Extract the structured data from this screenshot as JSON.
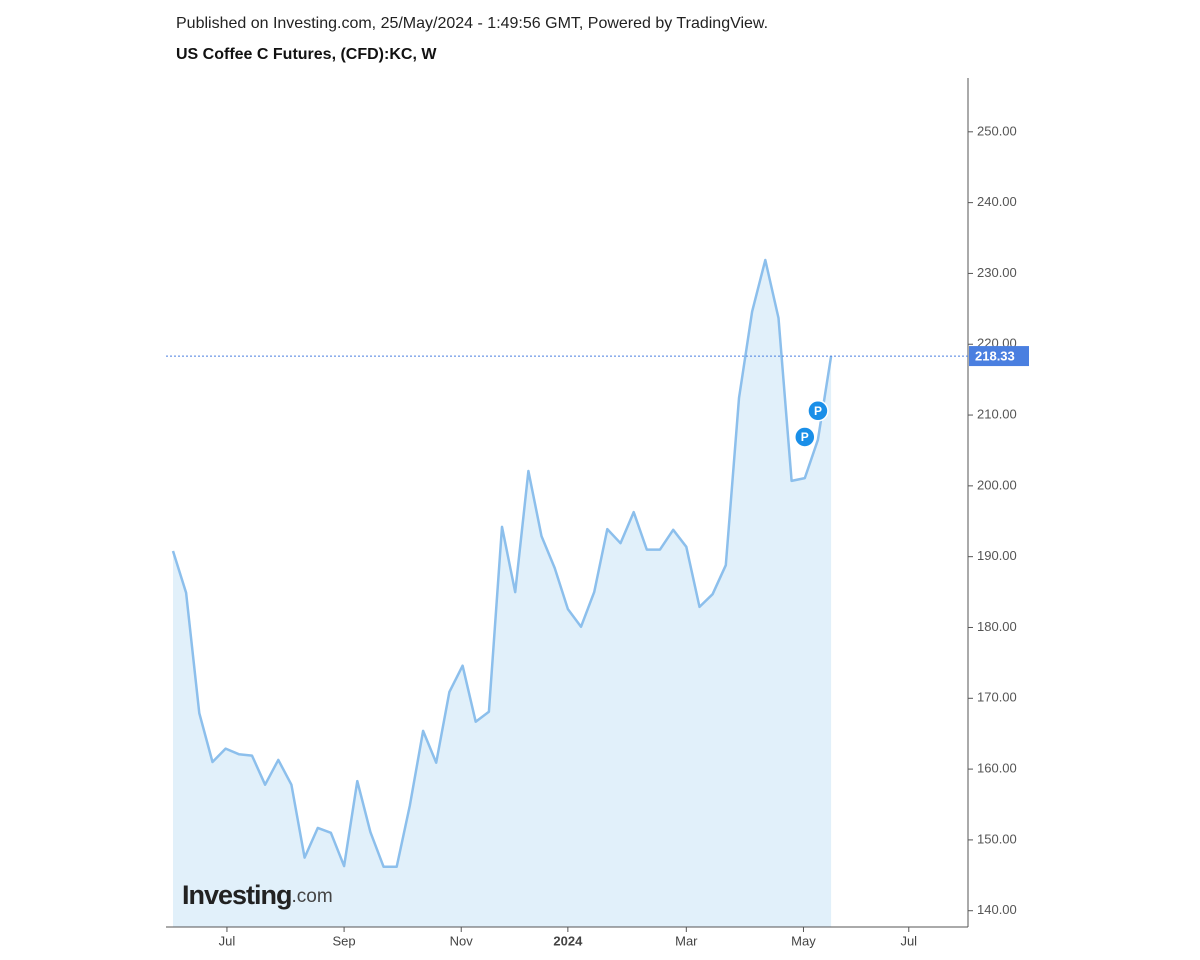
{
  "chart_data": {
    "type": "area",
    "header": "Published on Investing.com, 25/May/2024 - 1:49:56 GMT, Powered by TradingView.",
    "title": "US Coffee C Futures, (CFD):KC, W",
    "watermark": {
      "brand": "Investing",
      "suffix": ".com"
    },
    "categories": [
      null,
      null,
      null,
      null,
      null,
      null,
      null,
      null,
      null,
      null,
      null,
      null,
      null,
      null,
      null,
      null,
      null,
      null,
      null,
      null,
      null,
      null,
      null,
      null,
      null,
      null,
      null,
      null,
      null,
      null,
      null,
      null,
      null,
      null,
      null,
      null,
      null,
      null,
      null,
      null,
      null,
      null,
      null,
      null,
      null,
      null,
      null,
      null,
      null,
      null,
      null
    ],
    "values": [
      190.8,
      184.9,
      167.9,
      161.0,
      162.9,
      162.1,
      161.9,
      157.8,
      161.3,
      157.8,
      147.5,
      151.7,
      151.0,
      146.3,
      158.3,
      151.1,
      146.2,
      146.2,
      154.9,
      165.4,
      160.9,
      170.9,
      174.6,
      166.7,
      168.1,
      194.2,
      185.0,
      202.1,
      192.9,
      188.4,
      182.6,
      180.1,
      185.0,
      193.9,
      191.9,
      196.3,
      191.0,
      191.0,
      193.8,
      191.4,
      182.9,
      184.7,
      188.8,
      212.4,
      224.6,
      231.9,
      223.7,
      200.7,
      201.1,
      206.5,
      218.33
    ],
    "color": "#8cbfec",
    "fill": "#e1f0fa",
    "last_color": "#4a7fe0",
    "xlim": [
      -0.53,
      60.4
    ],
    "xticks": [
      {
        "value": 4.1,
        "label": "Jul"
      },
      {
        "value": 13.0,
        "label": "Sep"
      },
      {
        "value": 21.9,
        "label": "Nov"
      },
      {
        "value": 30.0,
        "label": "2024"
      },
      {
        "value": 39.0,
        "label": "Mar"
      },
      {
        "value": 47.9,
        "label": "May"
      },
      {
        "value": 55.9,
        "label": "Jul"
      }
    ],
    "ylim": [
      137.7,
      257.6
    ],
    "yticks": [
      {
        "value": 140,
        "label": "140.00"
      },
      {
        "value": 150,
        "label": "150.00"
      },
      {
        "value": 160,
        "label": "160.00"
      },
      {
        "value": 170,
        "label": "170.00"
      },
      {
        "value": 180,
        "label": "180.00"
      },
      {
        "value": 190,
        "label": "190.00"
      },
      {
        "value": 200,
        "label": "200.00"
      },
      {
        "value": 210,
        "label": "210.00"
      },
      {
        "value": 220,
        "label": "220.00"
      },
      {
        "value": 230,
        "label": "230.00"
      },
      {
        "value": 240,
        "label": "240.00"
      },
      {
        "value": 250,
        "label": "250.00"
      }
    ],
    "annotations": [
      {
        "text": "P",
        "x": 48.0,
        "y": 206.9
      },
      {
        "text": "P",
        "x": 49.0,
        "y": 210.6
      }
    ]
  }
}
